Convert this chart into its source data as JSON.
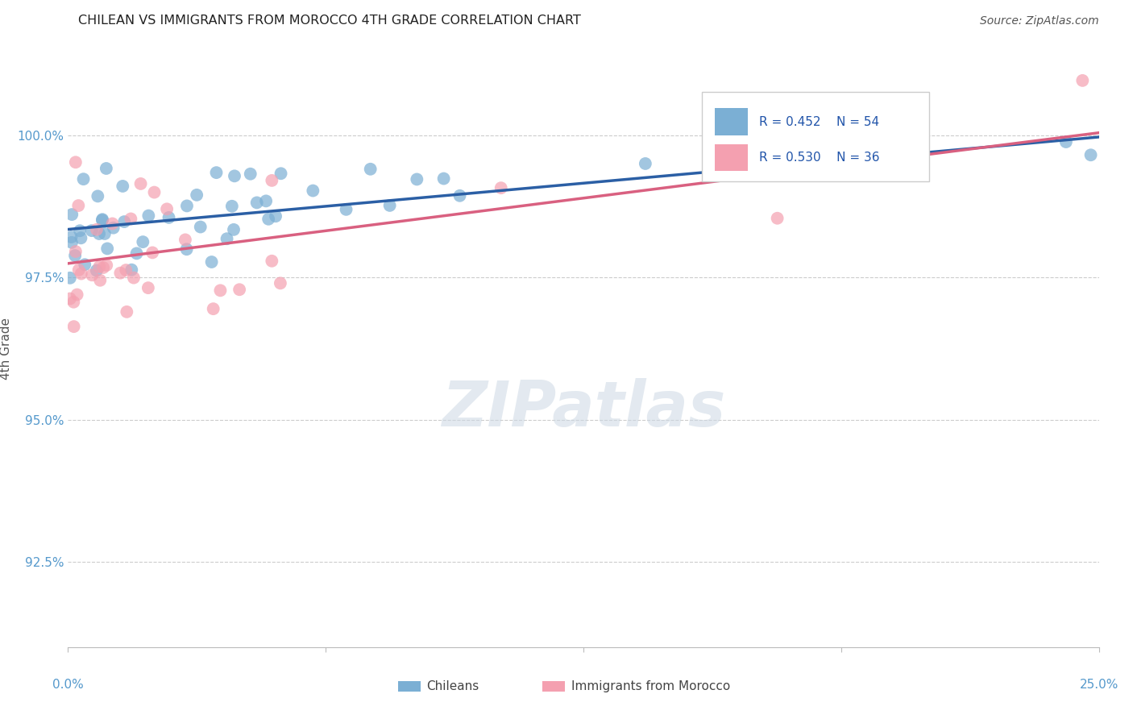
{
  "title": "CHILEAN VS IMMIGRANTS FROM MOROCCO 4TH GRADE CORRELATION CHART",
  "source": "Source: ZipAtlas.com",
  "ylabel": "4th Grade",
  "ytick_values": [
    92.5,
    95.0,
    97.5,
    100.0
  ],
  "xlim": [
    0.0,
    25.0
  ],
  "ylim": [
    91.0,
    101.5
  ],
  "legend_blue_r": "R = 0.452",
  "legend_blue_n": "N = 54",
  "legend_pink_r": "R = 0.530",
  "legend_pink_n": "N = 36",
  "blue_color": "#7bafd4",
  "pink_color": "#f4a0b0",
  "blue_line_color": "#2b5fa5",
  "pink_line_color": "#d96080",
  "blue_slope": 0.065,
  "blue_intercept": 98.35,
  "pink_slope": 0.092,
  "pink_intercept": 97.75
}
